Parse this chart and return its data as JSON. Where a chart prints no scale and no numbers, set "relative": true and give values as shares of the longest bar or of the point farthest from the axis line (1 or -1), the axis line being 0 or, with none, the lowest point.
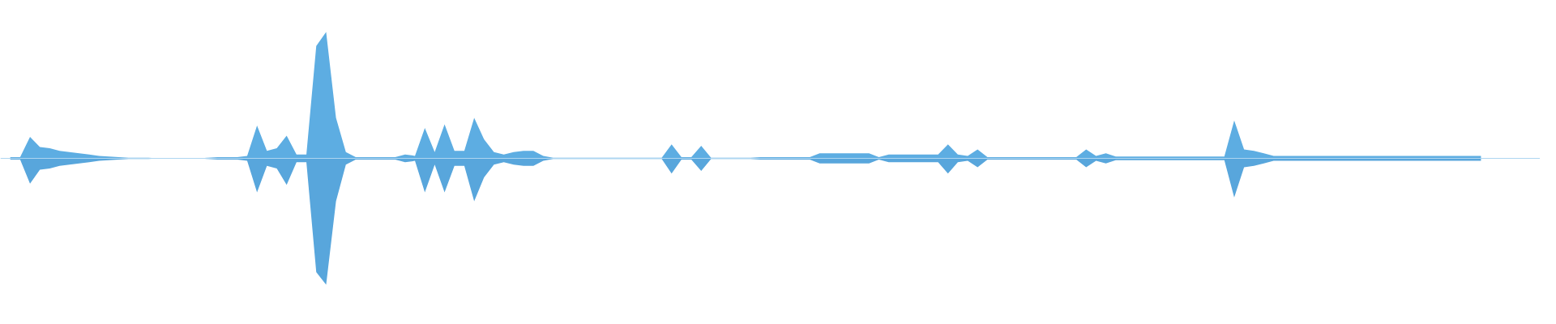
{
  "chart_data": {
    "type": "area",
    "relative": true,
    "ref_lines": [
      {
        "axis": "y",
        "value": 0,
        "color": "#aed6f1"
      }
    ],
    "tick_labels": false,
    "grid": false,
    "categories": [
      null,
      null,
      null,
      null,
      null,
      null,
      null,
      null,
      null,
      null,
      null,
      null,
      null,
      null,
      null,
      null,
      null,
      null,
      null,
      null,
      null,
      null,
      null,
      null,
      null,
      null,
      null,
      null,
      null,
      null,
      null,
      null,
      null,
      null,
      null,
      null,
      null,
      null,
      null,
      null,
      null,
      null,
      null,
      null,
      null,
      null,
      null,
      null,
      null,
      null,
      null,
      null,
      null,
      null,
      null,
      null,
      null,
      null,
      null,
      null,
      null,
      null,
      null,
      null,
      null,
      null,
      null,
      null,
      null,
      null,
      null,
      null,
      null,
      null,
      null,
      null,
      null,
      null,
      null,
      null,
      null,
      null,
      null,
      null,
      null,
      null,
      null,
      null,
      null,
      null,
      null,
      null,
      null,
      null,
      null,
      null,
      null,
      null,
      null,
      null,
      null,
      null,
      null,
      null,
      null,
      null,
      null,
      null,
      null,
      null,
      null,
      null,
      null,
      null,
      null,
      null,
      null,
      null,
      null,
      null,
      null,
      null,
      null,
      null,
      null,
      null,
      null,
      null,
      null,
      null,
      null,
      null,
      null,
      null,
      null,
      null,
      null,
      null,
      null,
      null,
      null,
      null,
      null,
      null,
      null,
      null,
      null,
      null,
      null,
      null
    ],
    "series": [
      {
        "color": "#5dade2",
        "values": [
          0.01,
          0.01,
          0.17,
          0.09,
          0.08,
          0.06,
          0.05,
          0.04,
          0.03,
          0.02,
          0.015,
          0.01,
          0.005,
          0.005,
          0.005,
          0,
          0,
          0,
          0,
          0,
          0.005,
          0.01,
          0.01,
          0.01,
          0.02,
          0.26,
          0.06,
          0.08,
          0.18,
          0.03,
          0.03,
          0.89,
          1,
          0.32,
          0.05,
          0.01,
          0.01,
          0.01,
          0.01,
          0.01,
          0.03,
          0.02,
          0.24,
          0.05,
          0.27,
          0.06,
          0.06,
          0.32,
          0.15,
          0.05,
          0.03,
          0.05,
          0.06,
          0.06,
          0.02,
          0.005,
          0.005,
          0.005,
          0.005,
          0.005,
          0.005,
          0.005,
          0.005,
          0.005,
          0.005,
          0.005,
          0.005,
          0.11,
          0.01,
          0.01,
          0.1,
          0.005,
          0.005,
          0.005,
          0.005,
          0.005,
          0.01,
          0.01,
          0.01,
          0.01,
          0.01,
          0.01,
          0.04,
          0.04,
          0.04,
          0.04,
          0.04,
          0.04,
          0.01,
          0.03,
          0.03,
          0.03,
          0.03,
          0.03,
          0.03,
          0.11,
          0.03,
          0.02,
          0.07,
          0.01,
          0.01,
          0.01,
          0.01,
          0.01,
          0.01,
          0.01,
          0.01,
          0.01,
          0.01,
          0.07,
          0.02,
          0.04,
          0.015,
          0.015,
          0.015,
          0.015,
          0.015,
          0.015,
          0.015,
          0.015,
          0.015,
          0.015,
          0.015,
          0.015,
          0.3,
          0.07,
          0.06,
          0.04,
          0.02,
          0.02,
          0.02,
          0.02,
          0.02,
          0.02,
          0.02,
          0.02,
          0.02,
          0.02,
          0.02,
          0.02,
          0.02,
          0.02,
          0.02,
          0.02,
          0.02,
          0.02,
          0.02,
          0.02,
          0.02,
          0.02
        ]
      },
      {
        "color": "#58a6dc",
        "values": [
          -0.01,
          -0.01,
          -0.2,
          -0.09,
          -0.08,
          -0.06,
          -0.05,
          -0.04,
          -0.03,
          -0.02,
          -0.015,
          -0.01,
          -0.005,
          -0.005,
          -0.005,
          0,
          0,
          0,
          0,
          0,
          -0.005,
          -0.01,
          -0.01,
          -0.01,
          -0.02,
          -0.27,
          -0.06,
          -0.08,
          -0.21,
          -0.03,
          -0.03,
          -0.9,
          -1,
          -0.34,
          -0.05,
          -0.01,
          -0.01,
          -0.01,
          -0.01,
          -0.01,
          -0.03,
          -0.02,
          -0.27,
          -0.05,
          -0.27,
          -0.06,
          -0.06,
          -0.34,
          -0.15,
          -0.05,
          -0.03,
          -0.05,
          -0.06,
          -0.06,
          -0.02,
          -0.005,
          -0.005,
          -0.005,
          -0.005,
          -0.005,
          -0.005,
          -0.005,
          -0.005,
          -0.005,
          -0.005,
          -0.005,
          -0.005,
          -0.12,
          -0.01,
          -0.01,
          -0.1,
          -0.005,
          -0.005,
          -0.005,
          -0.005,
          -0.005,
          -0.01,
          -0.01,
          -0.01,
          -0.01,
          -0.01,
          -0.01,
          -0.04,
          -0.04,
          -0.04,
          -0.04,
          -0.04,
          -0.04,
          -0.01,
          -0.03,
          -0.03,
          -0.03,
          -0.03,
          -0.03,
          -0.03,
          -0.12,
          -0.03,
          -0.02,
          -0.07,
          -0.01,
          -0.01,
          -0.01,
          -0.01,
          -0.01,
          -0.01,
          -0.01,
          -0.01,
          -0.01,
          -0.01,
          -0.07,
          -0.02,
          -0.04,
          -0.015,
          -0.015,
          -0.015,
          -0.015,
          -0.015,
          -0.015,
          -0.015,
          -0.015,
          -0.015,
          -0.015,
          -0.015,
          -0.015,
          -0.31,
          -0.07,
          -0.06,
          -0.04,
          -0.02,
          -0.02,
          -0.02,
          -0.02,
          -0.02,
          -0.02,
          -0.02,
          -0.02,
          -0.02,
          -0.02,
          -0.02,
          -0.02,
          -0.02,
          -0.02,
          -0.02,
          -0.02,
          -0.02,
          -0.02,
          -0.02,
          -0.02,
          -0.02,
          -0.02
        ]
      }
    ]
  }
}
